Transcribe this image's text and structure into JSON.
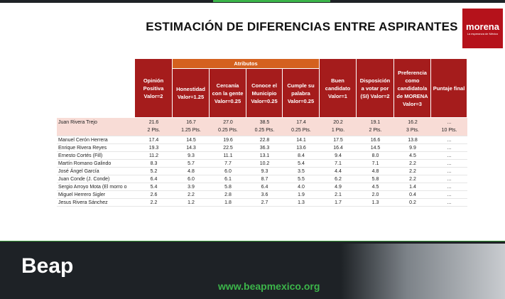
{
  "header": {
    "title": "ESTIMACIÓN DE DIFERENCIAS ENTRE ASPIRANTES"
  },
  "logo": {
    "name": "morena",
    "tagline": "La esperanza de México"
  },
  "table": {
    "group": "Atributos",
    "columns": [
      "Opinión Positiva Valor=2",
      "Honestidad Valor=1.25",
      "Cercanía con la gente Valor=0.25",
      "Conoce el Municipio Valor=0.25",
      "Cumple su palabra Valor=0.25",
      "Buen candidato Valor=1",
      "Disposición a votar por (SI) Valor=2",
      "Preferencia como candidato/a de MORENA Valor=3",
      "Puntaje final"
    ],
    "points": [
      "2 Pts.",
      "1.25 Pts.",
      "0.25 Pts.",
      "0.25 Pts.",
      "0.25 Pts.",
      "1 Pto.",
      "2 Pts.",
      "3 Pts.",
      "10 Pts."
    ],
    "rows": [
      [
        "Juan Rivera Trejo",
        "21.6",
        "16.7",
        "27.0",
        "38.5",
        "17.4",
        "20.2",
        "19.1",
        "16.2",
        "..."
      ],
      [
        "Manuel Cerón Herrera",
        "17.4",
        "14.5",
        "19.6",
        "22.8",
        "14.1",
        "17.5",
        "16.6",
        "13.8",
        "..."
      ],
      [
        "Enrique Rivera Reyes",
        "19.3",
        "14.3",
        "22.5",
        "36.3",
        "13.6",
        "16.4",
        "14.5",
        "9.9",
        "..."
      ],
      [
        "Ernesto Cortés (Fill)",
        "11.2",
        "9.3",
        "11.1",
        "13.1",
        "8.4",
        "9.4",
        "8.0",
        "4.5",
        "..."
      ],
      [
        "Martín Romano Galindo",
        "8.3",
        "5.7",
        "7.7",
        "10.2",
        "5.4",
        "7.1",
        "7.1",
        "2.2",
        "..."
      ],
      [
        "José Ángel García",
        "5.2",
        "4.8",
        "6.0",
        "9.3",
        "3.5",
        "4.4",
        "4.8",
        "2.2",
        "..."
      ],
      [
        "Juan Conde (J. Conde)",
        "6.4",
        "6.0",
        "6.1",
        "8.7",
        "5.5",
        "6.2",
        "5.8",
        "2.2",
        "..."
      ],
      [
        "Sergio Arroyo Mota (El morro o",
        "5.4",
        "3.9",
        "5.8",
        "6.4",
        "4.0",
        "4.9",
        "4.5",
        "1.4",
        "..."
      ],
      [
        "Miguel Herrero Sigler",
        "2.6",
        "2.2",
        "2.8",
        "3.6",
        "1.9",
        "2.1",
        "2.0",
        "0.4",
        "..."
      ],
      [
        "Jesus Rivera Sánchez",
        "2.2",
        "1.2",
        "1.8",
        "2.7",
        "1.3",
        "1.7",
        "1.3",
        "0.2",
        "..."
      ]
    ]
  },
  "footer": {
    "brand": "Beap",
    "url": "www.beapmexico.org"
  }
}
